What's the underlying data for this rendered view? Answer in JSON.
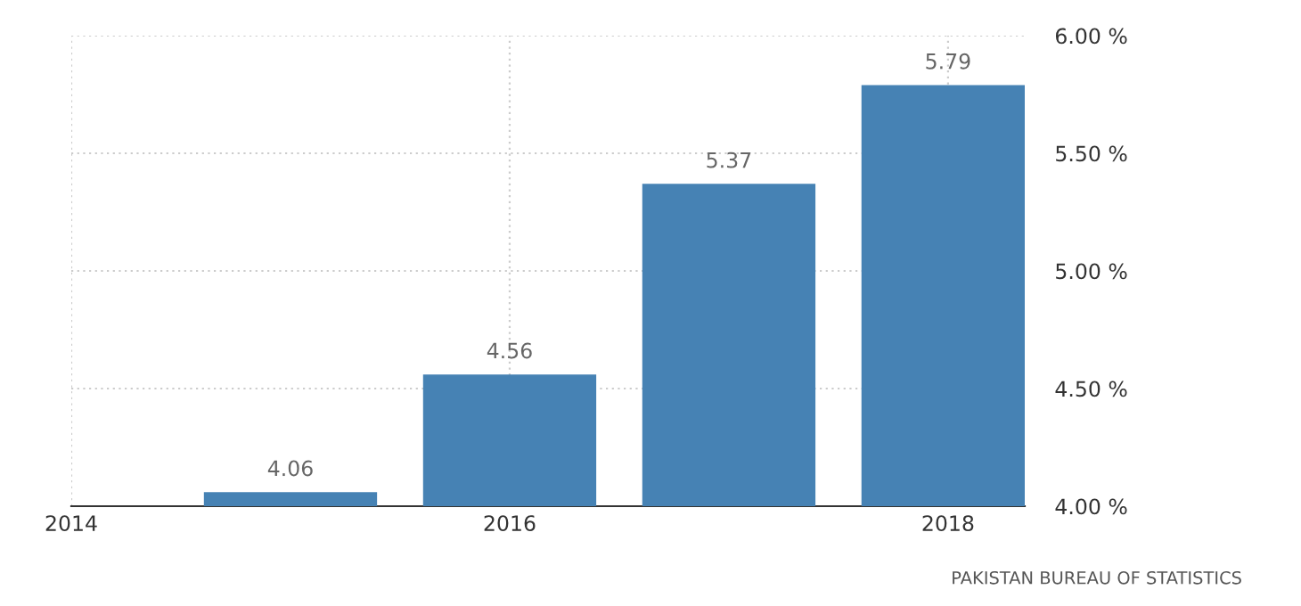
{
  "chart_data": {
    "type": "bar",
    "x": [
      2015,
      2016,
      2017,
      2018
    ],
    "values": [
      4.06,
      4.56,
      5.37,
      5.79
    ],
    "value_labels": [
      "4.06",
      "4.56",
      "5.37",
      "5.79"
    ],
    "color": "#4682b4",
    "xlim": [
      2014,
      2018.35
    ],
    "xticks": [
      2014,
      2016,
      2018
    ],
    "ylim": [
      4,
      6
    ],
    "yticks": [
      {
        "value": 4,
        "label": "4.00 %"
      },
      {
        "value": 4.5,
        "label": "4.50 %"
      },
      {
        "value": 5,
        "label": "5.00 %"
      },
      {
        "value": 5.5,
        "label": "5.50 %"
      },
      {
        "value": 6,
        "label": "6.00 %"
      }
    ],
    "grid": true,
    "annotations": [
      "PAKISTAN BUREAU OF STATISTICS"
    ]
  }
}
